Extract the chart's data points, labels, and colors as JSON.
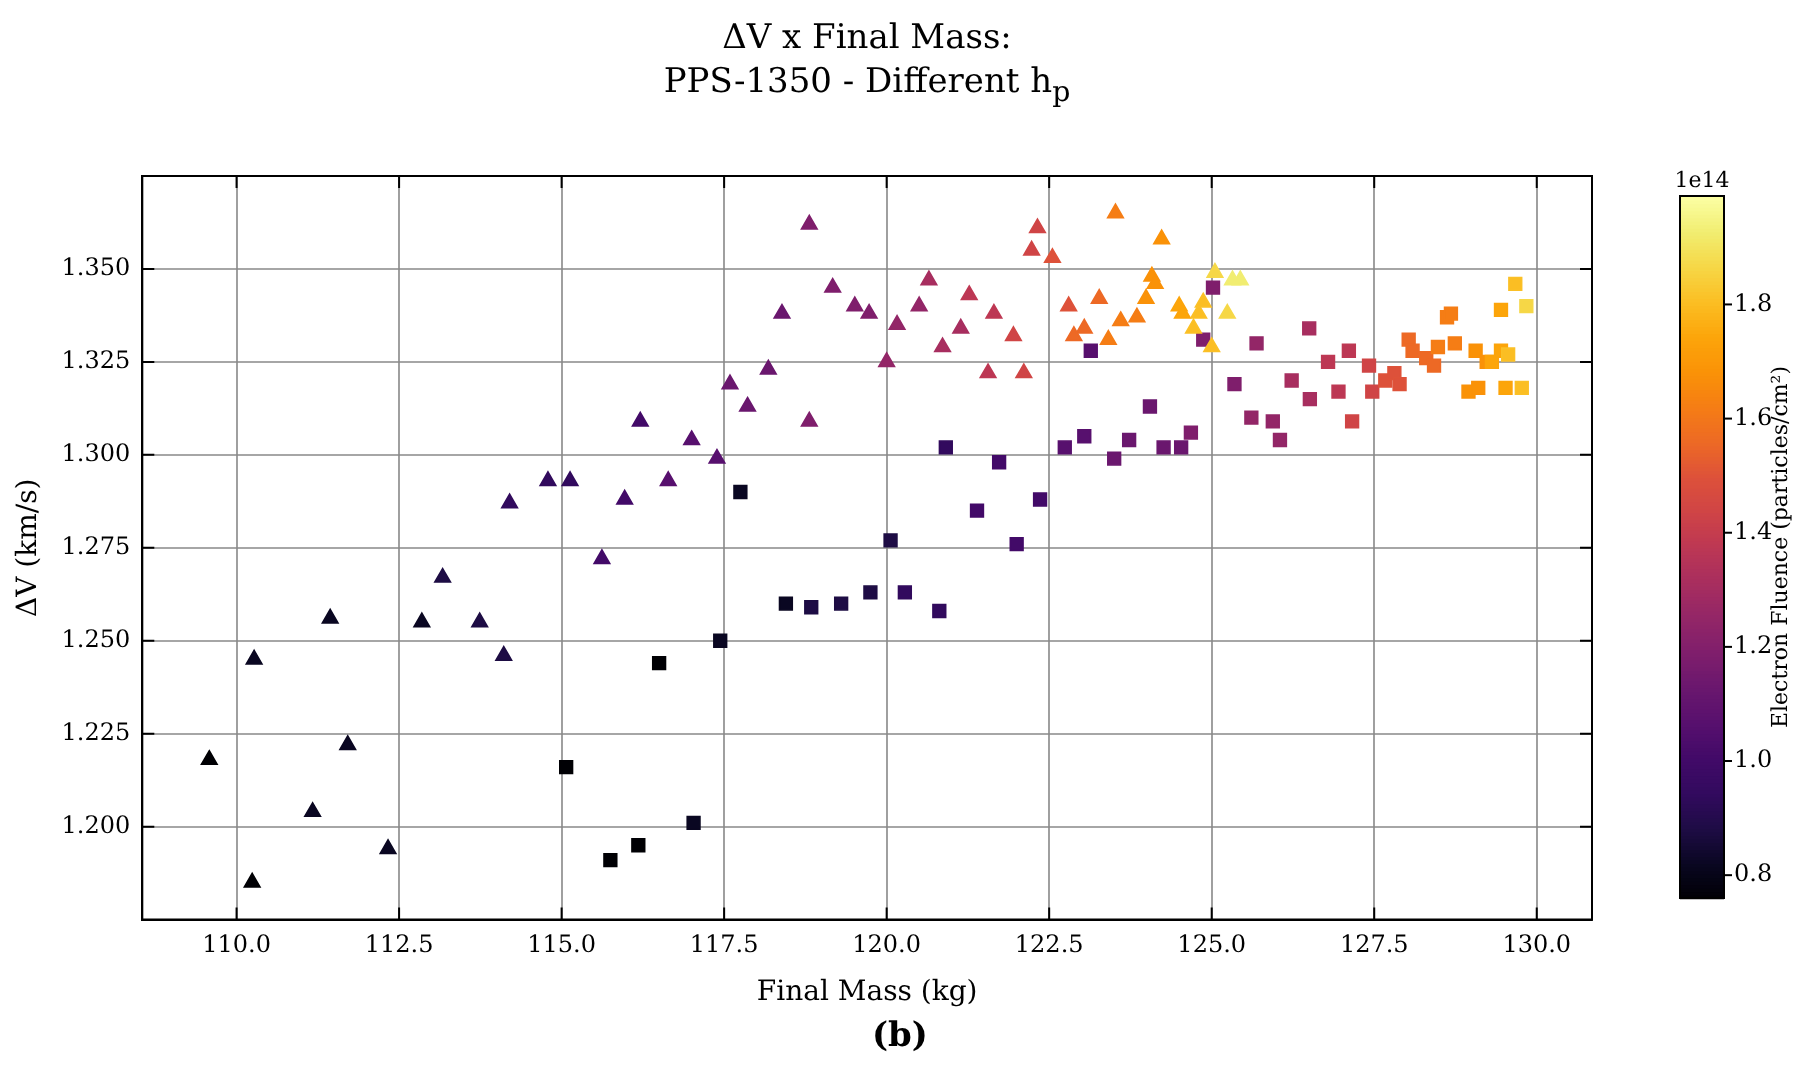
{
  "chart_data": {
    "type": "scatter",
    "title": "ΔV x Final Mass:\nPPS-1350 - Different h$_{p}$",
    "xlabel": "Final Mass (kg)",
    "ylabel": "ΔV (km/s)",
    "clabel": "Electron Fluence (particles/cm²)",
    "annotations": [
      "1e14",
      "(b)"
    ],
    "xlim": [
      108.55,
      130.85
    ],
    "ylim": [
      1.175,
      1.375
    ],
    "xticks": [
      {
        "value": 110,
        "label": "110.0"
      },
      {
        "value": 112.5,
        "label": "112.5"
      },
      {
        "value": 115,
        "label": "115.0"
      },
      {
        "value": 117.5,
        "label": "117.5"
      },
      {
        "value": 120,
        "label": "120.0"
      },
      {
        "value": 122.5,
        "label": "122.5"
      },
      {
        "value": 125,
        "label": "125.0"
      },
      {
        "value": 127.5,
        "label": "127.5"
      },
      {
        "value": 130,
        "label": "130.0"
      }
    ],
    "yticks": [
      {
        "value": 1.2,
        "label": "1.200"
      },
      {
        "value": 1.225,
        "label": "1.225"
      },
      {
        "value": 1.25,
        "label": "1.250"
      },
      {
        "value": 1.275,
        "label": "1.275"
      },
      {
        "value": 1.3,
        "label": "1.300"
      },
      {
        "value": 1.325,
        "label": "1.325"
      },
      {
        "value": 1.35,
        "label": "1.350"
      }
    ],
    "clim": [
      0.76,
      1.99
    ],
    "cticks": [
      {
        "value": 0.8,
        "label": "0.8"
      },
      {
        "value": 1,
        "label": "1.0"
      },
      {
        "value": 1.2,
        "label": "1.2"
      },
      {
        "value": 1.4,
        "label": "1.4"
      },
      {
        "value": 1.6,
        "label": "1.6"
      },
      {
        "value": 1.8,
        "label": "1.8"
      }
    ],
    "grid": true,
    "series": [
      {
        "marker": "triangle",
        "colors": [
          "#000004",
          "#000004",
          "#0a0722",
          "#0a0722",
          "#0a0722",
          "#0a0722",
          "#0a0722",
          "#0a0722",
          "#1e0c45",
          "#1e0c45",
          "#1e0c45",
          "#320a5e",
          "#320a5e",
          "#320a5e",
          "#420a68",
          "#420a68",
          "#420a68",
          "#57106e",
          "#57106e",
          "#57106e",
          "#6a176e",
          "#6a176e",
          "#6a176e",
          "#6a176e",
          "#7f1e6c",
          "#7f1e6c",
          "#7f1e6c",
          "#7f1e6c",
          "#7f1e6c",
          "#932667",
          "#932667",
          "#932667",
          "#a82e5f",
          "#a82e5f",
          "#a82e5f",
          "#bc3754",
          "#bc3754",
          "#bc3754",
          "#cf4446",
          "#cf4446",
          "#cf4446",
          "#cf4446",
          "#dd513a",
          "#dd513a",
          "#ed6925",
          "#ed6925",
          "#ed6925",
          "#f57d15",
          "#f57d15",
          "#f57d15",
          "#f57d15",
          "#fa9207",
          "#fa9207",
          "#fa9207",
          "#fa9207",
          "#fca50a",
          "#fca50a",
          "#fbbe23",
          "#fbbe23",
          "#fbbe23",
          "#fbbe23",
          "#f6d746",
          "#f6d746",
          "#f1ed71",
          "#f1ed71"
        ],
        "x": [
          109.58,
          110.24,
          110.27,
          111.17,
          111.44,
          111.71,
          112.33,
          112.85,
          113.17,
          113.74,
          114.11,
          114.2,
          114.79,
          115.13,
          115.62,
          115.97,
          116.21,
          116.64,
          117.0,
          117.39,
          117.59,
          117.86,
          118.18,
          118.39,
          118.81,
          118.81,
          119.17,
          119.51,
          119.73,
          120.0,
          120.16,
          120.5,
          120.65,
          120.86,
          121.14,
          121.27,
          121.56,
          121.65,
          121.95,
          122.11,
          122.23,
          122.32,
          122.55,
          122.8,
          122.88,
          123.04,
          123.27,
          123.41,
          123.52,
          123.6,
          123.85,
          123.99,
          124.08,
          124.13,
          124.23,
          124.5,
          124.55,
          124.72,
          124.8,
          124.87,
          125.0,
          125.05,
          125.24,
          125.32,
          125.44
        ],
        "values": [
          1.218,
          1.185,
          1.245,
          1.204,
          1.256,
          1.222,
          1.194,
          1.255,
          1.267,
          1.255,
          1.246,
          1.287,
          1.293,
          1.293,
          1.272,
          1.288,
          1.309,
          1.293,
          1.304,
          1.299,
          1.319,
          1.313,
          1.323,
          1.338,
          1.362,
          1.309,
          1.345,
          1.34,
          1.338,
          1.325,
          1.335,
          1.34,
          1.347,
          1.329,
          1.334,
          1.343,
          1.322,
          1.338,
          1.332,
          1.322,
          1.355,
          1.361,
          1.353,
          1.34,
          1.332,
          1.334,
          1.342,
          1.331,
          1.365,
          1.336,
          1.337,
          1.342,
          1.348,
          1.346,
          1.358,
          1.34,
          1.338,
          1.334,
          1.338,
          1.341,
          1.329,
          1.349,
          1.338,
          1.347,
          1.347
        ],
        "cvalues": [
          0.76,
          0.76,
          0.82,
          0.82,
          0.82,
          0.82,
          0.82,
          0.82,
          0.88,
          0.88,
          0.88,
          0.94,
          0.94,
          0.94,
          1.01,
          1.01,
          1.01,
          1.07,
          1.07,
          1.07,
          1.13,
          1.13,
          1.13,
          1.13,
          1.19,
          1.19,
          1.19,
          1.19,
          1.19,
          1.25,
          1.25,
          1.25,
          1.31,
          1.31,
          1.31,
          1.38,
          1.38,
          1.38,
          1.44,
          1.44,
          1.44,
          1.44,
          1.5,
          1.5,
          1.56,
          1.56,
          1.56,
          1.62,
          1.62,
          1.62,
          1.62,
          1.68,
          1.68,
          1.68,
          1.68,
          1.74,
          1.74,
          1.81,
          1.81,
          1.81,
          1.81,
          1.87,
          1.87,
          1.93,
          1.93
        ]
      },
      {
        "marker": "square",
        "colors": [
          "#000004",
          "#000004",
          "#000004",
          "#000004",
          "#0a0722",
          "#0a0722",
          "#0a0722",
          "#0a0722",
          "#1e0c45",
          "#1e0c45",
          "#1e0c45",
          "#1e0c45",
          "#320a5e",
          "#320a5e",
          "#320a5e",
          "#420a68",
          "#420a68",
          "#420a68",
          "#420a68",
          "#57106e",
          "#57106e",
          "#57106e",
          "#6a176e",
          "#6a176e",
          "#6a176e",
          "#6a176e",
          "#6a176e",
          "#7f1e6c",
          "#7f1e6c",
          "#7f1e6c",
          "#7f1e6c",
          "#932667",
          "#932667",
          "#932667",
          "#932667",
          "#a82e5f",
          "#a82e5f",
          "#a82e5f",
          "#bc3754",
          "#bc3754",
          "#bc3754",
          "#cf4446",
          "#cf4446",
          "#cf4446",
          "#dd513a",
          "#dd513a",
          "#dd513a",
          "#ed6925",
          "#ed6925",
          "#ed6925",
          "#ed6925",
          "#f57d15",
          "#f57d15",
          "#f57d15",
          "#f57d15",
          "#fa9207",
          "#fa9207",
          "#fa9207",
          "#fa9207",
          "#fca50a",
          "#fca50a",
          "#fca50a",
          "#fca50a",
          "#fbbe23",
          "#fbbe23",
          "#fbbe23",
          "#f6d746"
        ],
        "x": [
          115.07,
          115.75,
          116.18,
          116.5,
          117.03,
          117.44,
          117.75,
          118.45,
          118.84,
          119.3,
          119.75,
          120.06,
          120.28,
          120.81,
          120.91,
          121.39,
          121.73,
          122.0,
          122.36,
          122.74,
          123.04,
          123.14,
          123.5,
          123.73,
          124.05,
          124.26,
          124.53,
          124.68,
          124.87,
          125.02,
          125.35,
          125.61,
          125.69,
          125.94,
          126.05,
          126.23,
          126.5,
          126.51,
          126.79,
          126.95,
          127.11,
          127.16,
          127.42,
          127.47,
          127.67,
          127.81,
          127.89,
          128.03,
          128.09,
          128.3,
          128.42,
          128.48,
          128.62,
          128.68,
          128.74,
          128.95,
          129.06,
          129.1,
          129.23,
          129.31,
          129.45,
          129.45,
          129.52,
          129.56,
          129.67,
          129.77,
          129.84
        ],
        "values": [
          1.216,
          1.191,
          1.195,
          1.244,
          1.201,
          1.25,
          1.29,
          1.26,
          1.259,
          1.26,
          1.263,
          1.277,
          1.263,
          1.258,
          1.302,
          1.285,
          1.298,
          1.276,
          1.288,
          1.302,
          1.305,
          1.328,
          1.299,
          1.304,
          1.313,
          1.302,
          1.302,
          1.306,
          1.331,
          1.345,
          1.319,
          1.31,
          1.33,
          1.309,
          1.304,
          1.32,
          1.334,
          1.315,
          1.325,
          1.317,
          1.328,
          1.309,
          1.324,
          1.317,
          1.32,
          1.322,
          1.319,
          1.331,
          1.328,
          1.326,
          1.324,
          1.329,
          1.337,
          1.338,
          1.33,
          1.317,
          1.328,
          1.318,
          1.325,
          1.325,
          1.339,
          1.328,
          1.318,
          1.327,
          1.346,
          1.318,
          1.34
        ],
        "cvalues": [
          0.76,
          0.76,
          0.76,
          0.76,
          0.82,
          0.82,
          0.82,
          0.82,
          0.88,
          0.88,
          0.88,
          0.88,
          0.94,
          0.94,
          0.94,
          1.01,
          1.01,
          1.01,
          1.01,
          1.07,
          1.07,
          1.07,
          1.13,
          1.13,
          1.13,
          1.13,
          1.13,
          1.19,
          1.19,
          1.19,
          1.19,
          1.25,
          1.25,
          1.25,
          1.25,
          1.31,
          1.31,
          1.31,
          1.38,
          1.38,
          1.38,
          1.44,
          1.44,
          1.44,
          1.5,
          1.5,
          1.5,
          1.56,
          1.56,
          1.56,
          1.56,
          1.62,
          1.62,
          1.62,
          1.62,
          1.68,
          1.68,
          1.68,
          1.68,
          1.74,
          1.74,
          1.74,
          1.74,
          1.81,
          1.81,
          1.81,
          1.87
        ]
      }
    ]
  }
}
